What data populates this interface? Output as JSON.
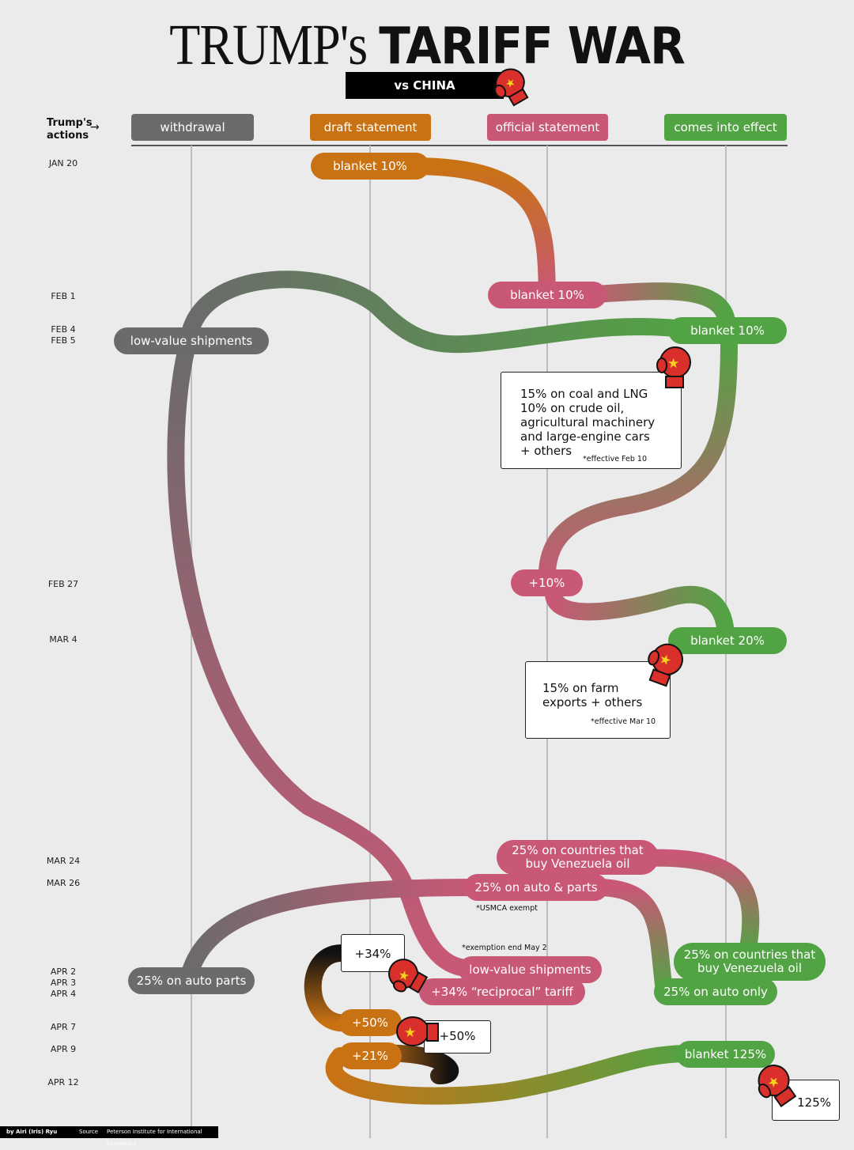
{
  "title": {
    "part1": "TRUMP's",
    "part2": "TARIFF WAR",
    "subtitle": "vs CHINA"
  },
  "actions_label": {
    "line1": "Trump's",
    "line2": "actions",
    "arrow": "→"
  },
  "columns": [
    {
      "label": "withdrawal",
      "color": "#6b6b6b"
    },
    {
      "label": "draft statement",
      "color": "#c97214"
    },
    {
      "label": "official statement",
      "color": "#c85876"
    },
    {
      "label": "comes into effect",
      "color": "#52a344"
    }
  ],
  "dates": [
    "JAN 20",
    "FEB 1",
    "FEB 4",
    "FEB 5",
    "FEB 27",
    "MAR 4",
    "MAR 24",
    "MAR 26",
    "APR 2",
    "APR 3",
    "APR 4",
    "APR 7",
    "APR 9",
    "APR 12"
  ],
  "pills": {
    "jan20_draft": "blanket 10%",
    "feb1_official": "blanket 10%",
    "feb4_effect": "blanket 10%",
    "feb5_withdrawal": "low-value shipments",
    "feb27_official": "+10%",
    "mar4_effect": "blanket 20%",
    "mar24_official_l1": "25% on countries that",
    "mar24_official_l2": "buy Venezuela oil",
    "mar26_official": "25% on auto & parts",
    "apr2_withdrawal": "25% on auto parts",
    "apr2_official": "low-value shipments",
    "apr2_reciprocal": "+34% “reciprocal” tariff",
    "apr2_effect_l1": "25% on countries that",
    "apr2_effect_l2": "buy Venezuela oil",
    "apr3_effect": "25% on auto only",
    "apr7_draft": "+50%",
    "apr9_draft": "+21%",
    "apr9_effect": "blanket 125%"
  },
  "notes": {
    "usmca": "*USMCA exempt",
    "exemption": "*exemption end May 2"
  },
  "china_boxes": {
    "feb": {
      "l1": "15% on coal and LNG",
      "l2": "10% on crude oil,",
      "l3": "agricultural machinery",
      "l4": "and large-engine cars",
      "l5": "+ others",
      "note": "*effective Feb 10"
    },
    "mar": {
      "l1": "15% on farm",
      "l2": "exports + others",
      "note": "*effective Mar 10"
    },
    "apr4": "+34%",
    "apr9": "+50%",
    "apr12": "125%"
  },
  "footer": {
    "author": "by Airi (Iris) Ryu",
    "source_label": "Source",
    "source": "Peterson Institute for International Economics"
  },
  "colors": {
    "withdrawal": "#6b6b6b",
    "draft": "#c97214",
    "official": "#c85876",
    "effect": "#52a344",
    "china": "#d9302c"
  }
}
